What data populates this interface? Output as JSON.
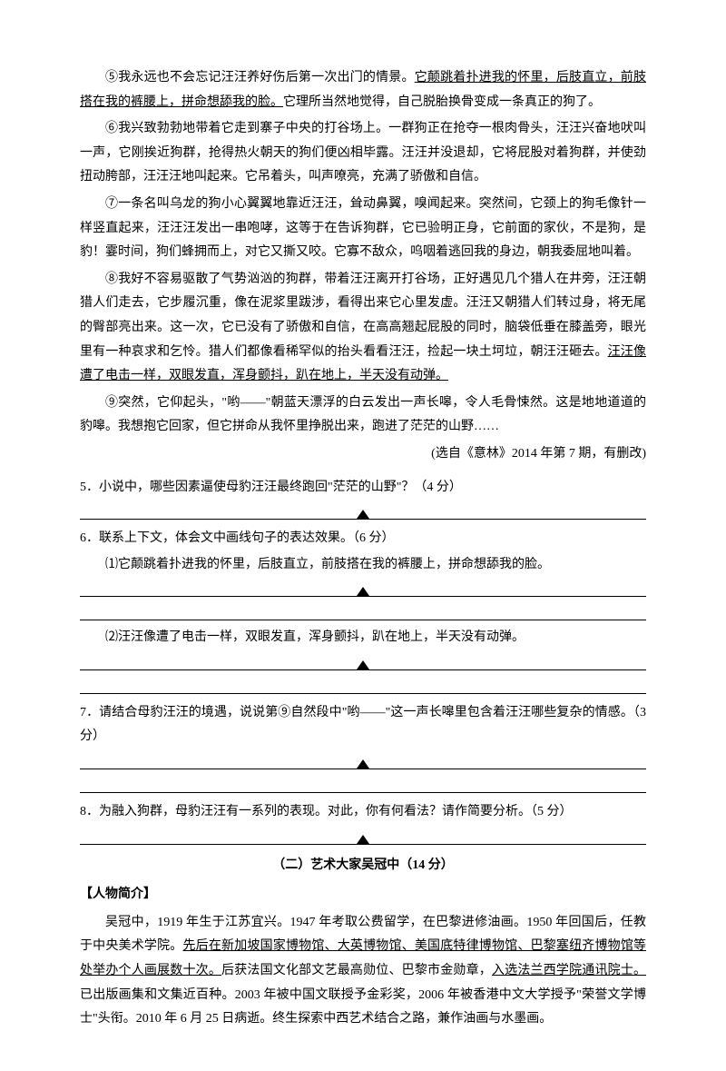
{
  "paragraphs": {
    "p5_pre": "⑤我永远也不会忘记汪汪养好伤后第一次出门的情景。",
    "p5_ul": "它颠跳着扑进我的怀里，后肢直立，前肢搭在我的裤腰上，拼命想舔我的脸。",
    "p5_post": "它理所当然地觉得，自己脱胎换骨变成一条真正的狗了。",
    "p6": "⑥我兴致勃勃地带着它走到寨子中央的打谷场上。一群狗正在抢夺一根肉骨头，汪汪兴奋地吠叫一声，它刚挨近狗群，抢得热火朝天的狗们便凶相毕露。汪汪并没退却，它将屁股对着狗群，并使劲扭动胯部，汪汪汪地叫起来。它吊着头，叫声嘹亮，充满了骄傲和自信。",
    "p7": "⑦一条名叫乌龙的狗小心翼翼地靠近汪汪，耸动鼻翼，嗅闻起来。突然间，它颈上的狗毛像针一样竖直起来，汪汪汪发出一串咆哮，这等于在告诉狗群，它已验明正身，它前面的家伙，不是狗，是豹！霎时间，狗们蜂拥而上，对它又撕又咬。它寡不敌众，呜咽着逃回我的身边，朝我委屈地叫着。",
    "p8_pre": "⑧我好不容易驱散了气势汹汹的狗群，带着汪汪离开打谷场，正好遇见几个猎人在井旁，汪汪朝猎人们走去，它步履沉重，像在泥浆里跋涉，看得出来它心里发虚。汪汪又朝猎人们转过身，将无尾的臀部亮出来。这一次，它已没有了骄傲和自信，在高高翘起屁股的同时，脑袋低垂在膝盖旁，眼光里有一种哀求和乞怜。猎人们都像看稀罕似的抬头看看汪汪，捡起一块土坷垃，朝汪汪砸去。",
    "p8_ul": "汪汪像遭了电击一样，双眼发直，浑身颤抖，趴在地上，半天没有动弹。",
    "p9": "⑨突然，它仰起头，\"哟——\"朝蓝天漂浮的白云发出一声长嗥，令人毛骨悚然。这是地地道道的豹嗥。我想抱它回家，但它拼命从我怀里挣脱出来，跑进了茫茫的山野……"
  },
  "source": "(选自《意林》2014 年第 7 期，有删改)",
  "questions": {
    "q5": "5．小说中，哪些因素逼使母豹汪汪最终跑回\"茫茫的山野\"？（4 分）",
    "q6": "6．联系上下文，体会文中画线句子的表达效果。（6 分）",
    "q6_1": "⑴它颠跳着扑进我的怀里，后肢直立，前肢搭在我的裤腰上，拼命想舔我的脸。",
    "q6_2": "⑵汪汪像遭了电击一样，双眼发直，浑身颤抖，趴在地上，半天没有动弹。",
    "q7": "7．请结合母豹汪汪的境遇，说说第⑨自然段中\"哟——\"这一声长嗥里包含着汪汪哪些复杂的情感。（3 分）",
    "q8": "8．为融入狗群，母豹汪汪有一系列的表现。对此，你有何看法？请作简要分析。（5 分）"
  },
  "section2_title": "（二）艺术大家吴冠中（14 分）",
  "person_intro_label": "【人物简介】",
  "person_intro_pre": "吴冠中，1919 年生于江苏宜兴。1947 年考取公费留学，在巴黎进修油画。1950 年回国后，任教于中央美术学院。",
  "person_intro_ul": "先后在新加坡国家博物馆、大英博物馆、美国底特律博物馆、巴黎塞纽齐博物馆等处举办个人画展数十次。",
  "person_intro_mid": "后获法国文化部文艺最高勋位、巴黎市金勋章，",
  "person_intro_ul2": "入选法兰西学院通讯院士。",
  "person_intro_post": "已出版画集和文集近百种。2003 年被中国文联授予金彩奖，2006 年被香港中文大学授予\"荣誉文学博士\"头衔。2010 年 6 月 25 日病逝。终生探索中西艺术结合之路，兼作油画与水墨画。"
}
